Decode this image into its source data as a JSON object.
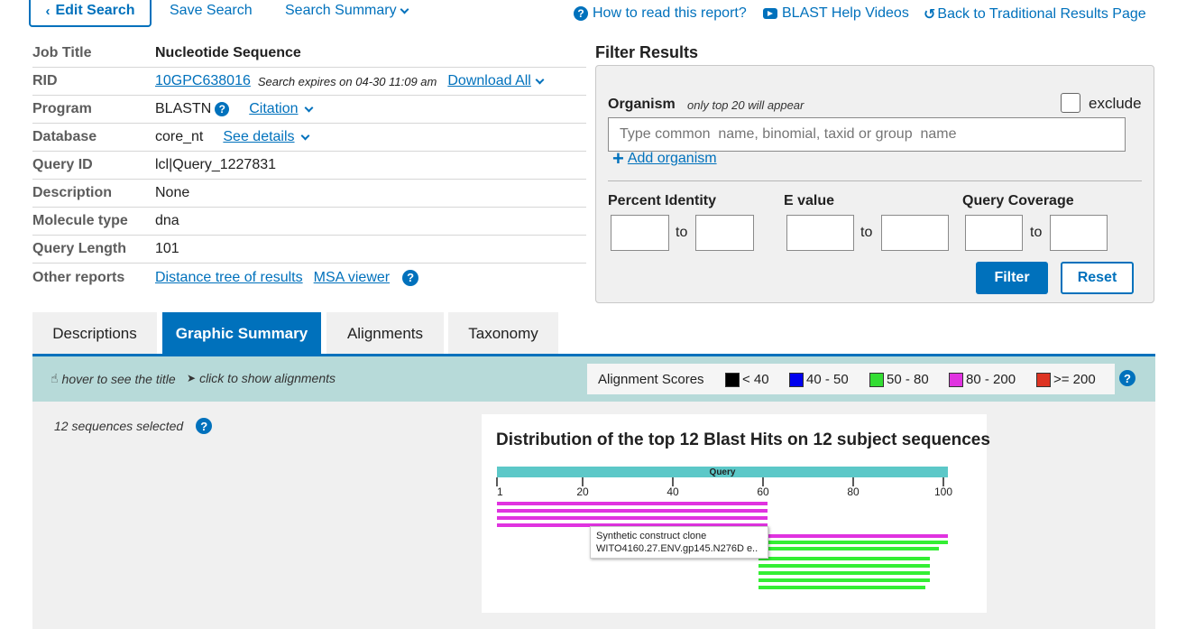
{
  "nav": {
    "edit_search": "Edit Search",
    "save_search": "Save Search",
    "search_summary": "Search Summary",
    "how_to_read": "How to read this report?",
    "help_videos": "BLAST Help Videos",
    "back_traditional": "Back to Traditional Results Page"
  },
  "job": {
    "job_title_label": "Job Title",
    "job_title": "Nucleotide Sequence",
    "rid_label": "RID",
    "rid": "10GPC638016",
    "expires": "Search expires on 04-30 11:09 am",
    "download_all": "Download All",
    "program_label": "Program",
    "program": "BLASTN",
    "citation": "Citation",
    "database_label": "Database",
    "database": "core_nt",
    "see_details": "See details",
    "query_id_label": "Query ID",
    "query_id": "lcl|Query_1227831",
    "description_label": "Description",
    "description": "None",
    "molecule_label": "Molecule type",
    "molecule": "dna",
    "query_length_label": "Query Length",
    "query_length": "101",
    "other_reports_label": "Other reports",
    "distance_tree": "Distance tree of results",
    "msa_viewer": "MSA viewer"
  },
  "filter": {
    "title": "Filter Results",
    "organism_label": "Organism",
    "organism_note": "only top 20 will appear",
    "exclude": "exclude",
    "organism_placeholder": "Type common  name, binomial, taxid or group  name",
    "add_organism": "Add organism",
    "percent_identity": "Percent Identity",
    "e_value": "E value",
    "query_coverage": "Query Coverage",
    "to": "to",
    "filter_btn": "Filter",
    "reset_btn": "Reset"
  },
  "tabs": [
    "Descriptions",
    "Graphic Summary",
    "Alignments",
    "Taxonomy"
  ],
  "graphic": {
    "hover_hint": "hover to see the title",
    "click_hint": "click to show alignments",
    "scores_label": "Alignment Scores",
    "scores": [
      {
        "label": "< 40",
        "color": "#000000"
      },
      {
        "label": "40 - 50",
        "color": "#0000ee"
      },
      {
        "label": "50 - 80",
        "color": "#33dd33"
      },
      {
        "label": "80 - 200",
        "color": "#e033e0"
      },
      {
        "label": ">= 200",
        "color": "#dd3322"
      }
    ],
    "sequences_selected": "12 sequences selected",
    "dist_title": "Distribution of the top 12 Blast Hits on 12 subject sequences",
    "query_label": "Query",
    "ticks": [
      "1",
      "20",
      "40",
      "60",
      "80",
      "100"
    ],
    "tooltip_line1": "Synthetic construct clone",
    "tooltip_line2": "WITO4160.27.ENV.gp145.N276D e..",
    "colors": {
      "query_bar": "#5cc8c8",
      "magenta": "#e033e0",
      "green": "#33ee33"
    }
  },
  "chart_data": {
    "type": "bar",
    "title": "Distribution of the top 12 Blast Hits on 12 subject sequences",
    "xlabel": "Query",
    "x_ticks": [
      1,
      20,
      40,
      60,
      80,
      100
    ],
    "xlim": [
      1,
      101
    ],
    "series": [
      {
        "values": [
          {
            "start": 1,
            "end": 61,
            "color": "magenta"
          },
          {
            "start": 1,
            "end": 61,
            "color": "magenta"
          },
          {
            "start": 1,
            "end": 61,
            "color": "magenta"
          },
          {
            "start": 1,
            "end": 61,
            "color": "magenta"
          },
          {
            "start": 61,
            "end": 101,
            "color": "magenta"
          },
          {
            "start": 61,
            "end": 101,
            "color": "green"
          },
          {
            "start": 60,
            "end": 99,
            "color": "green"
          },
          {
            "start": 59,
            "end": 97,
            "color": "green"
          },
          {
            "start": 59,
            "end": 97,
            "color": "green"
          },
          {
            "start": 59,
            "end": 97,
            "color": "green"
          },
          {
            "start": 59,
            "end": 97,
            "color": "green"
          },
          {
            "start": 59,
            "end": 96,
            "color": "green"
          }
        ]
      }
    ]
  }
}
